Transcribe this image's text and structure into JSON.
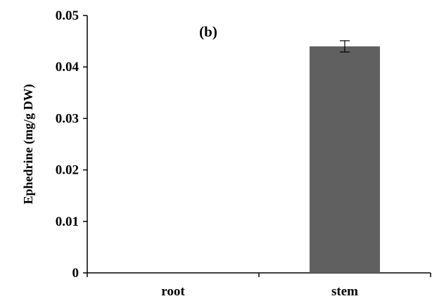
{
  "chart_data": {
    "type": "bar",
    "title": "",
    "annotation": "(b)",
    "xlabel": "",
    "ylabel": "Ephedrine (mg/g DW)",
    "categories": [
      "root",
      "stem"
    ],
    "values": [
      0,
      0.044
    ],
    "errors": [
      0,
      0.0011
    ],
    "ylim": [
      0,
      0.05
    ],
    "yticks": [
      0,
      0.01,
      0.02,
      0.03,
      0.04,
      0.05
    ],
    "ytick_labels": [
      "0",
      "0.01",
      "0.02",
      "0.03",
      "0.04",
      "0.05"
    ],
    "grid": false,
    "legend": "none",
    "bar_color": "#606060"
  }
}
